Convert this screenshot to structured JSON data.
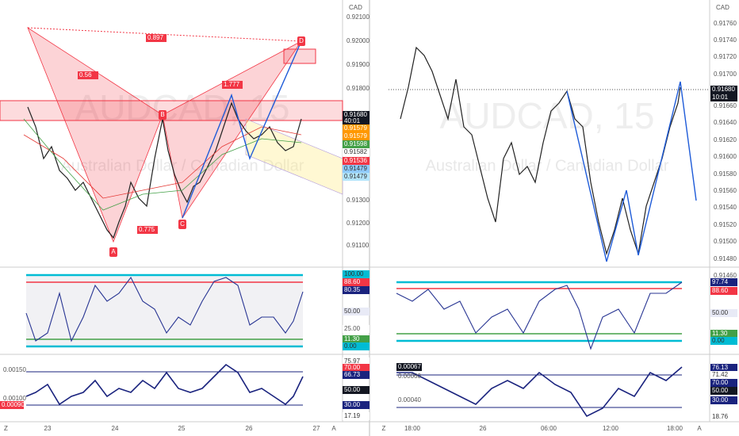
{
  "left_chart": {
    "currency": "CAD",
    "watermark": "AUDCAD, 15",
    "watermark_subtitle": "Australian Dollar / Canadian Dollar",
    "price_scale": [
      "0.92100",
      "0.92000",
      "0.91900",
      "0.91800",
      "0.91300",
      "0.91200",
      "0.91100"
    ],
    "price_tags": [
      "0.91680",
      "40:01",
      "0.91579",
      "0.91579",
      "0.91598",
      "0.91582",
      "0.91536",
      "0.91479",
      "0.91479"
    ],
    "pattern_ratios": [
      "0.897",
      "0.56",
      "1.777",
      "0.775"
    ],
    "pattern_points": [
      "A",
      "B",
      "C",
      "D"
    ],
    "oscillator_tags": [
      "100.00",
      "88.60",
      "80.35",
      "50.00",
      "25.00",
      "11.30",
      "0.00"
    ],
    "macd_scale": [
      "0.00150",
      "0.00100",
      "0.00090"
    ],
    "macd_tags": [
      "75.97",
      "70.00",
      "66.73",
      "50.00",
      "30.00",
      "17.19"
    ],
    "time_axis": [
      "Z",
      "23",
      "24",
      "25",
      "26",
      "27",
      "A"
    ]
  },
  "right_chart": {
    "currency": "CAD",
    "watermark": "AUDCAD, 15",
    "watermark_subtitle": "Australian Dollar / Canadian Dollar",
    "price_scale": [
      "0.91760",
      "0.91740",
      "0.91720",
      "0.91700",
      "0.91660",
      "0.91640",
      "0.91620",
      "0.91600",
      "0.91580",
      "0.91560",
      "0.91540",
      "0.91520",
      "0.91500",
      "0.91480",
      "0.91460"
    ],
    "price_tags": [
      "0.91680",
      "10:01"
    ],
    "oscillator_tags": [
      "97.74",
      "88.60",
      "50.00",
      "11.30",
      "0.00"
    ],
    "macd_scale": [
      "0.00067",
      "0.00060",
      "0.00040"
    ],
    "macd_tags": [
      "76.13",
      "71.42",
      "70.00",
      "50.00",
      "30.00",
      "18.76"
    ],
    "time_axis": [
      "Z",
      "18:00",
      "26",
      "06:00",
      "12:00",
      "18:00",
      "A"
    ]
  }
}
